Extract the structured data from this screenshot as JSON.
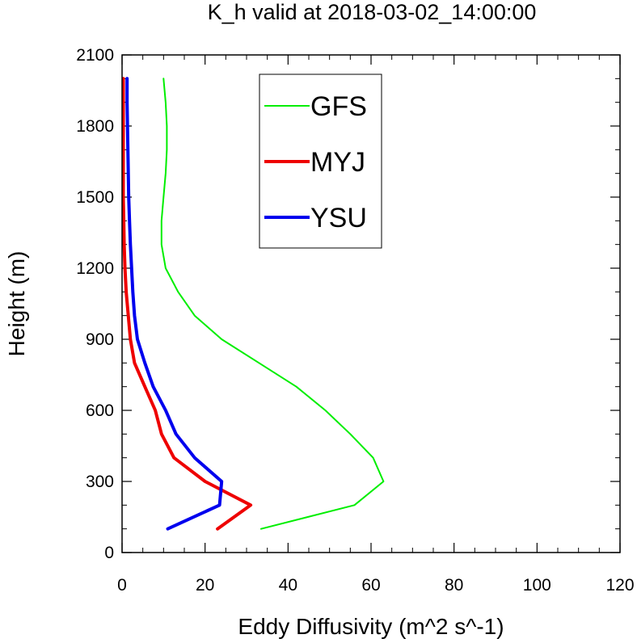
{
  "chart_data": {
    "type": "line",
    "title": "K_h valid at 2018-03-02_14:00:00",
    "xlabel": "Eddy Diffusivity (m^2 s^-1)",
    "ylabel": "Height (m)",
    "xlim": [
      0,
      120
    ],
    "ylim": [
      0,
      2100
    ],
    "xticks": [
      "0",
      "20",
      "40",
      "60",
      "80",
      "100",
      "120"
    ],
    "yticks": [
      "0",
      "300",
      "600",
      "900",
      "1200",
      "1500",
      "1800",
      "2100"
    ],
    "grid": false,
    "legend_position": "top-center",
    "series": [
      {
        "name": "GFS",
        "color": "#00ee00",
        "points": [
          [
            33.5,
            100
          ],
          [
            56,
            200
          ],
          [
            63,
            300
          ],
          [
            60.5,
            400
          ],
          [
            55,
            500
          ],
          [
            49,
            600
          ],
          [
            42,
            700
          ],
          [
            33,
            800
          ],
          [
            24,
            900
          ],
          [
            17.5,
            1000
          ],
          [
            13.5,
            1100
          ],
          [
            10.5,
            1200
          ],
          [
            9.5,
            1300
          ],
          [
            9.5,
            1400
          ],
          [
            10,
            1500
          ],
          [
            10.5,
            1600
          ],
          [
            10.8,
            1700
          ],
          [
            10.8,
            1800
          ],
          [
            10.5,
            1900
          ],
          [
            10,
            2000
          ]
        ]
      },
      {
        "name": "MYJ",
        "color": "#ee0000",
        "points": [
          [
            23,
            100
          ],
          [
            31,
            200
          ],
          [
            20,
            300
          ],
          [
            12.5,
            400
          ],
          [
            9.5,
            500
          ],
          [
            8,
            600
          ],
          [
            5.5,
            700
          ],
          [
            3,
            800
          ],
          [
            2,
            900
          ],
          [
            1.5,
            1000
          ],
          [
            1,
            1100
          ],
          [
            0.7,
            1200
          ],
          [
            0.5,
            1300
          ],
          [
            0.4,
            1400
          ],
          [
            0.3,
            1500
          ],
          [
            0.3,
            1600
          ],
          [
            0.3,
            1700
          ],
          [
            0.3,
            1800
          ],
          [
            0.3,
            1900
          ],
          [
            0.3,
            2000
          ]
        ]
      },
      {
        "name": "YSU",
        "color": "#0000ee",
        "points": [
          [
            11,
            100
          ],
          [
            23.5,
            200
          ],
          [
            24,
            300
          ],
          [
            17.5,
            400
          ],
          [
            13,
            500
          ],
          [
            10.5,
            600
          ],
          [
            7.5,
            700
          ],
          [
            5.5,
            800
          ],
          [
            3.7,
            900
          ],
          [
            3,
            1000
          ],
          [
            2.6,
            1100
          ],
          [
            2.3,
            1200
          ],
          [
            2,
            1300
          ],
          [
            1.8,
            1400
          ],
          [
            1.6,
            1500
          ],
          [
            1.5,
            1600
          ],
          [
            1.4,
            1700
          ],
          [
            1.3,
            1800
          ],
          [
            1.2,
            1900
          ],
          [
            1.2,
            2000
          ]
        ]
      }
    ]
  }
}
